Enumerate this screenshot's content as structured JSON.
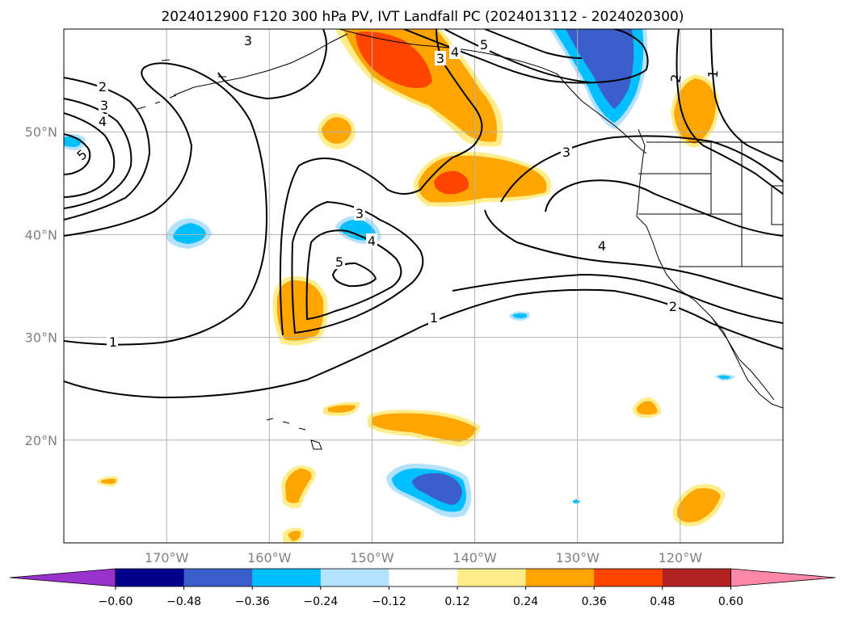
{
  "map": {
    "title": "2024012900 F120 300 hPa PV, IVT Landfall PC (2024013112 - 2024020300)",
    "projection": "PlateCarree",
    "extent": {
      "lon": [
        -180,
        -110
      ],
      "lat": [
        10,
        60
      ]
    },
    "gridlines": true,
    "lon_ticks": [
      {
        "value": -170,
        "label": "170°W"
      },
      {
        "value": -160,
        "label": "160°W"
      },
      {
        "value": -150,
        "label": "150°W"
      },
      {
        "value": -140,
        "label": "140°W"
      },
      {
        "value": -130,
        "label": "130°W"
      },
      {
        "value": -120,
        "label": "120°W"
      }
    ],
    "lat_ticks": [
      {
        "value": 20,
        "label": "20°N"
      },
      {
        "value": 30,
        "label": "30°N"
      },
      {
        "value": 40,
        "label": "40°N"
      },
      {
        "value": 50,
        "label": "50°N"
      }
    ],
    "contour_labels": [
      "1",
      "2",
      "3",
      "4",
      "5"
    ]
  },
  "colorbar": {
    "extend": "both",
    "tick_labels": [
      "−0.60",
      "−0.48",
      "−0.36",
      "−0.24",
      "−0.12",
      "0.12",
      "0.24",
      "0.36",
      "0.48",
      "0.60"
    ],
    "colors": [
      "#9932cc",
      "#00008b",
      "#3a5fcd",
      "#00bfff",
      "#b2e2ff",
      "#ffffff",
      "#ffec8b",
      "#ffa500",
      "#ff4500",
      "#b22222",
      "#ff88aa"
    ]
  }
}
